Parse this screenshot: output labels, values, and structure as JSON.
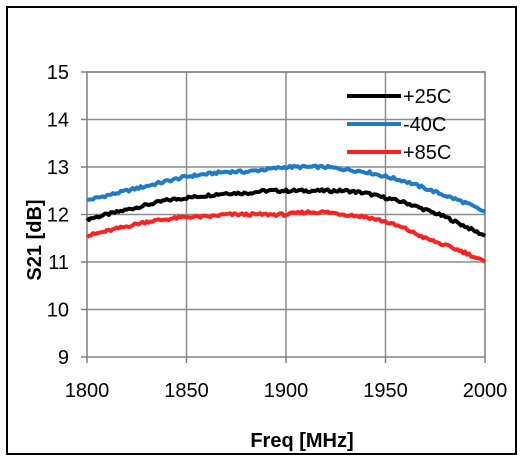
{
  "chart_data": {
    "type": "line",
    "title": "",
    "xlabel": "Freq [MHz]",
    "ylabel": "S21 [dB]",
    "xlim": [
      1800,
      2000
    ],
    "ylim": [
      9,
      15
    ],
    "x_ticks": [
      1800,
      1850,
      1900,
      1950,
      2000
    ],
    "y_ticks": [
      9,
      10,
      11,
      12,
      13,
      14,
      15
    ],
    "grid": true,
    "legend_position": "top-right",
    "series": [
      {
        "name": "+25C",
        "color": "#000000",
        "x": [
          1800,
          1810,
          1820,
          1830,
          1840,
          1850,
          1860,
          1870,
          1880,
          1890,
          1900,
          1910,
          1920,
          1930,
          1940,
          1950,
          1960,
          1970,
          1980,
          1990,
          2000
        ],
        "values": [
          11.9,
          12.0,
          12.1,
          12.2,
          12.3,
          12.35,
          12.4,
          12.45,
          12.45,
          12.5,
          12.5,
          12.5,
          12.5,
          12.5,
          12.45,
          12.35,
          12.25,
          12.1,
          11.95,
          11.75,
          11.55
        ]
      },
      {
        "name": "-40C",
        "color": "#1f7bc6",
        "x": [
          1800,
          1810,
          1820,
          1830,
          1840,
          1850,
          1860,
          1870,
          1880,
          1890,
          1900,
          1910,
          1920,
          1930,
          1940,
          1950,
          1960,
          1970,
          1980,
          1990,
          2000
        ],
        "values": [
          12.3,
          12.4,
          12.5,
          12.6,
          12.7,
          12.8,
          12.85,
          12.9,
          12.9,
          12.95,
          13.0,
          13.0,
          13.0,
          12.95,
          12.9,
          12.8,
          12.7,
          12.55,
          12.4,
          12.25,
          12.05
        ]
      },
      {
        "name": "+85C",
        "color": "#ff2020",
        "x": [
          1800,
          1810,
          1820,
          1830,
          1840,
          1850,
          1860,
          1870,
          1880,
          1890,
          1900,
          1910,
          1920,
          1930,
          1940,
          1950,
          1960,
          1970,
          1980,
          1990,
          2000
        ],
        "values": [
          11.55,
          11.65,
          11.75,
          11.85,
          11.9,
          11.95,
          11.95,
          12.0,
          12.0,
          12.0,
          12.0,
          12.05,
          12.05,
          12.0,
          11.95,
          11.85,
          11.7,
          11.5,
          11.35,
          11.2,
          11.0
        ]
      }
    ]
  }
}
